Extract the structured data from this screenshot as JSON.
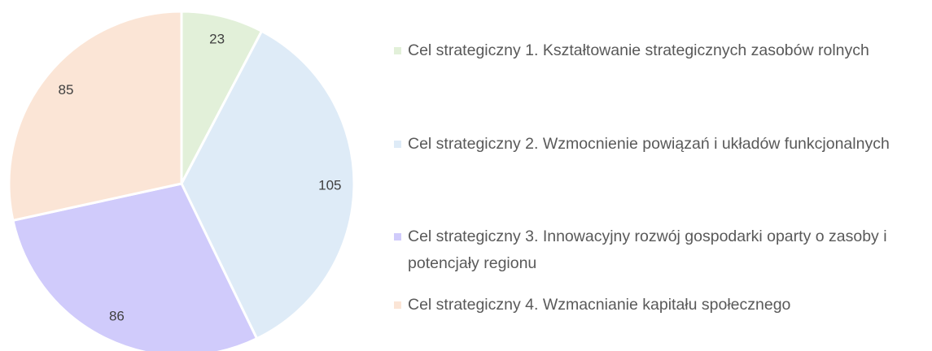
{
  "chart_data": {
    "type": "pie",
    "categories": [
      "Cel strategiczny 1. Kształtowanie strategicznych zasobów rolnych",
      "Cel strategiczny 2. Wzmocnienie powiązań i układów funkcjonalnych",
      "Cel strategiczny 3. Innowacyjny rozwój gospodarki oparty o zasoby i potencjały regionu",
      "Cel strategiczny 4. Wzmacnianie kapitału społecznego"
    ],
    "values": [
      23,
      105,
      86,
      85
    ],
    "colors": [
      "#e2f0d9",
      "#deebf7",
      "#d0cbfb",
      "#fbe5d6"
    ],
    "legend": "right"
  }
}
